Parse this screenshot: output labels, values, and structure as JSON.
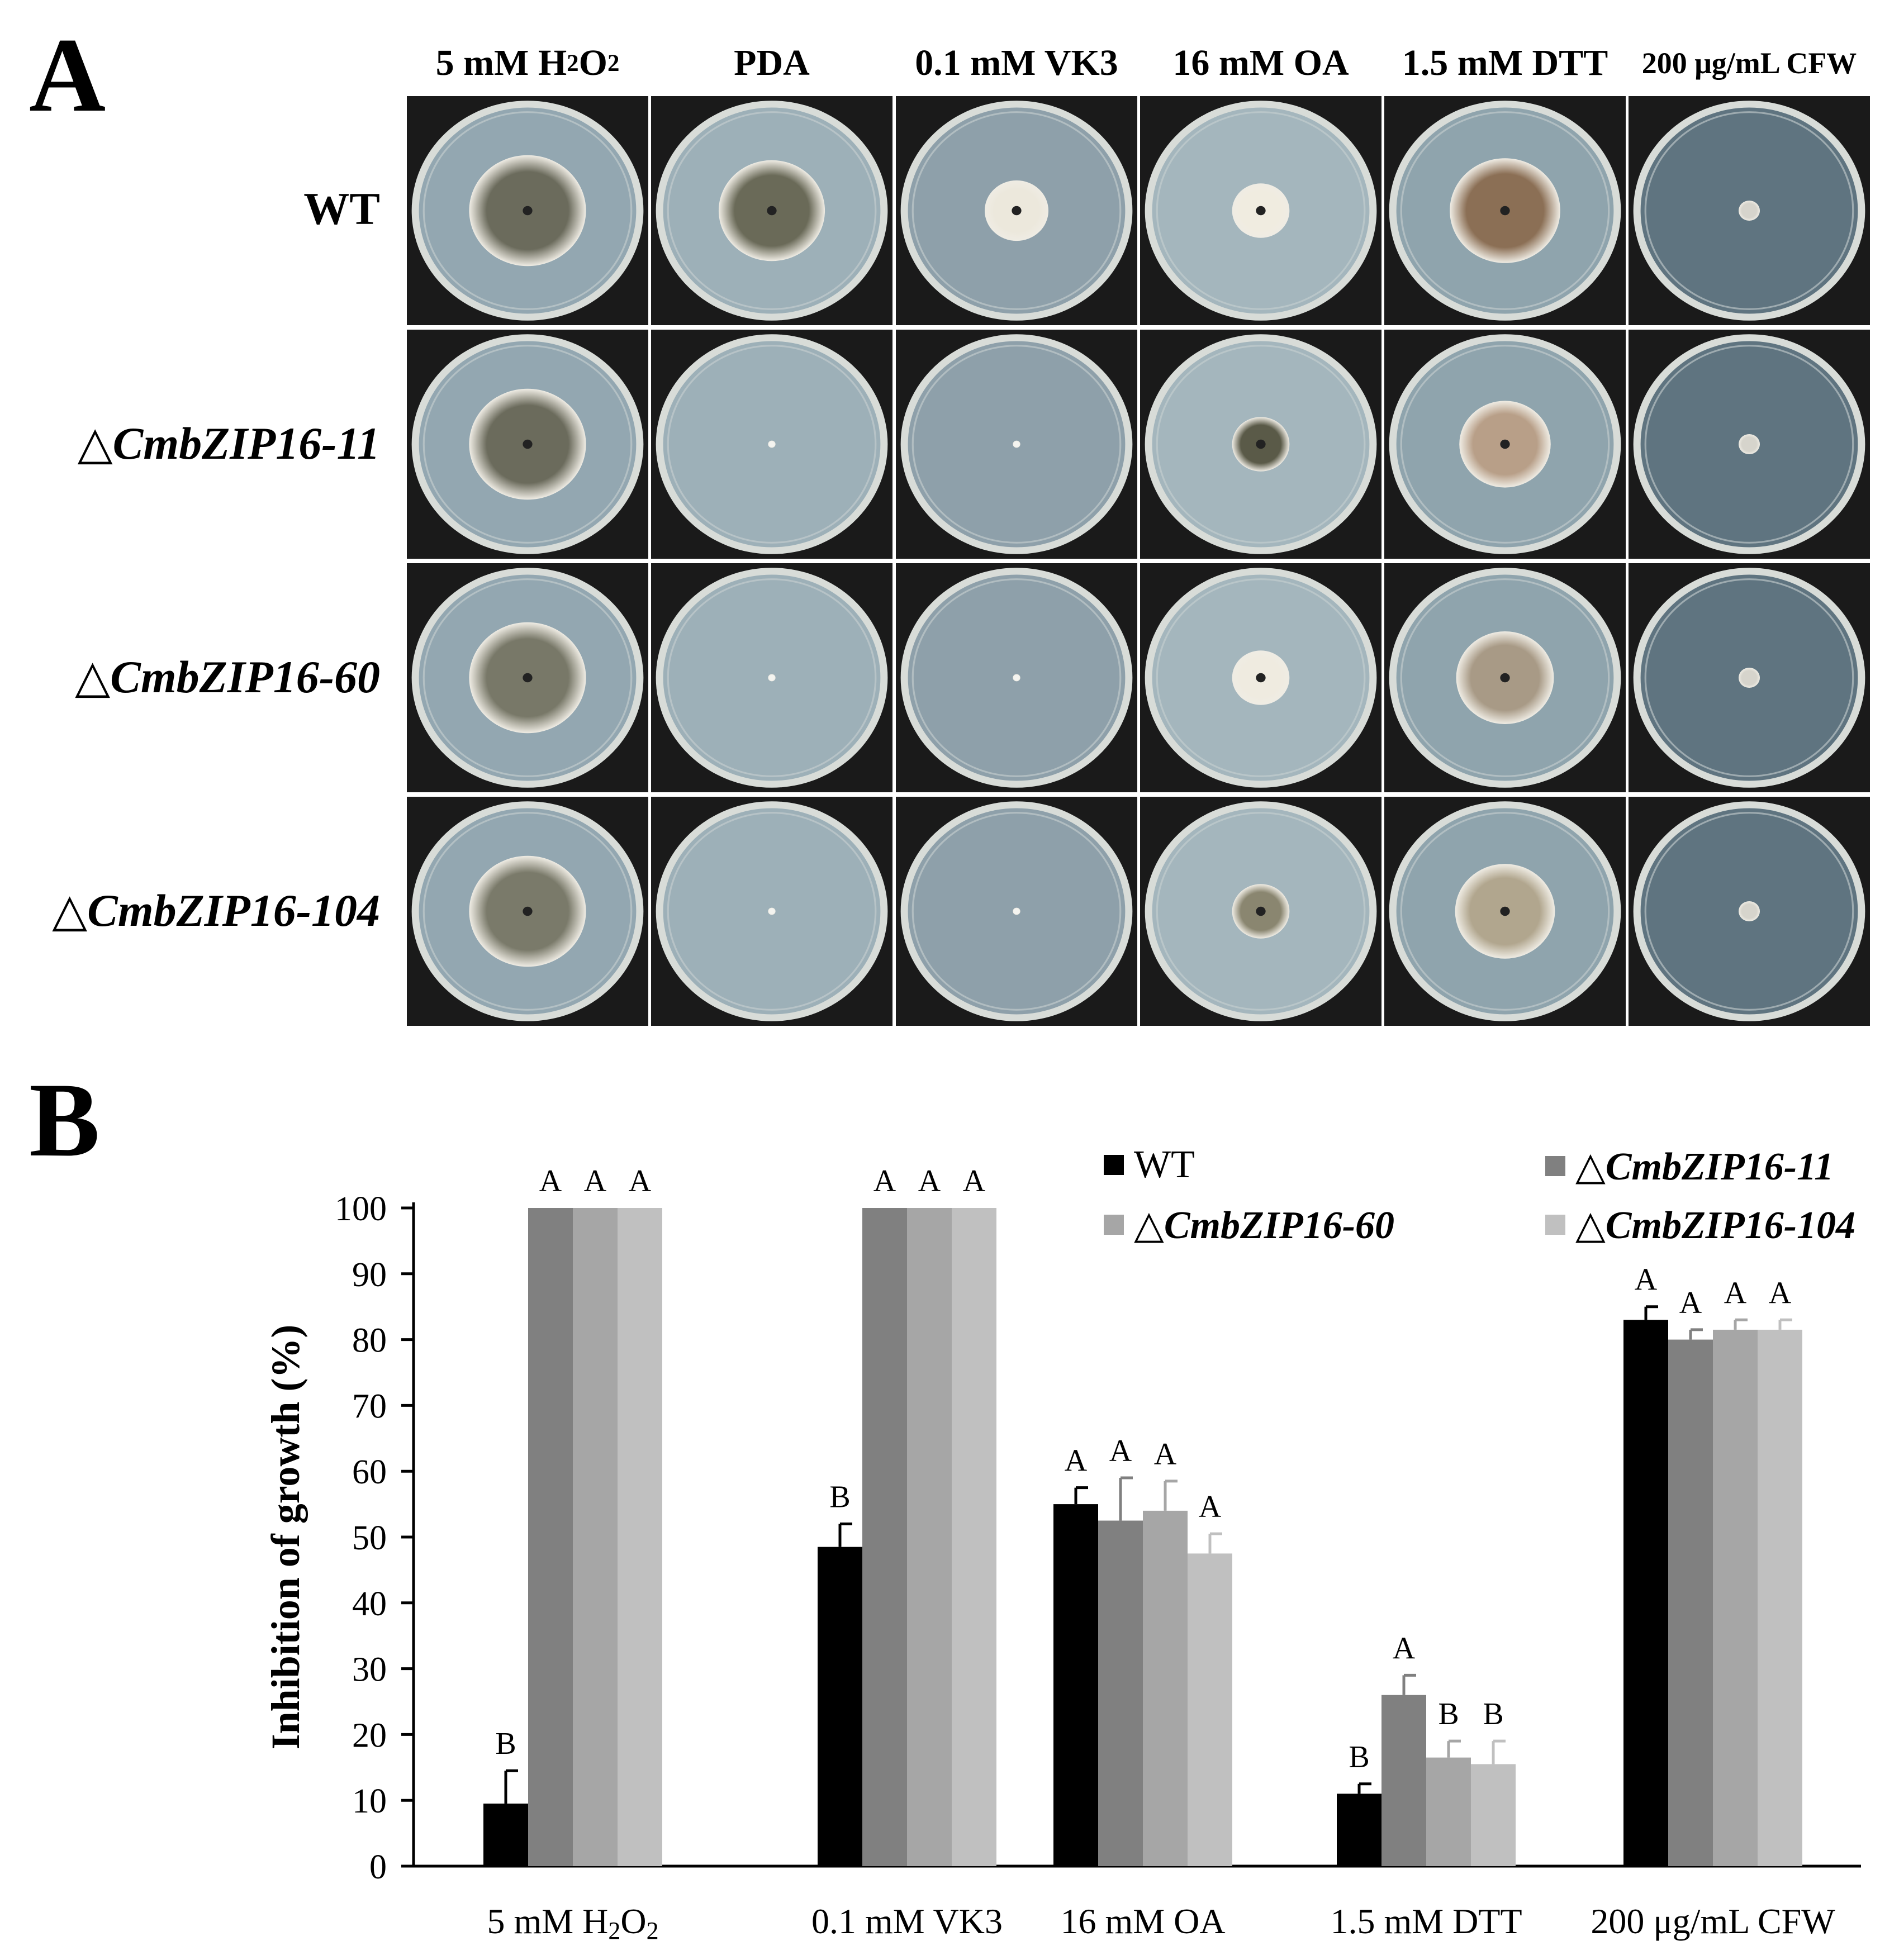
{
  "panels": {
    "a": "A",
    "b": "B"
  },
  "plate_grid": {
    "columns": [
      {
        "pre": "5 mM H",
        "sub1": "2",
        "mid": "O",
        "sub2": "2"
      },
      {
        "text": "PDA"
      },
      {
        "text": "0.1 mM VK3"
      },
      {
        "text": "16 mM OA"
      },
      {
        "text": "1.5 mM DTT"
      },
      {
        "text": "200 μg/mL CFW"
      }
    ],
    "rows": [
      {
        "text": "WT",
        "italic": false
      },
      {
        "text": "△CmbZIP16-11",
        "italic": true
      },
      {
        "text": "△CmbZIP16-60",
        "italic": true
      },
      {
        "text": "△CmbZIP16-104",
        "italic": true
      }
    ],
    "colony_radius": [
      [
        0.55,
        0.5,
        0.3,
        0.27,
        0.52,
        0.1
      ],
      [
        0.55,
        0.035,
        0.035,
        0.27,
        0.43,
        0.1
      ],
      [
        0.55,
        0.035,
        0.035,
        0.27,
        0.46,
        0.1
      ],
      [
        0.55,
        0.035,
        0.035,
        0.27,
        0.47,
        0.1
      ]
    ],
    "colony_color": [
      [
        "#6b6b5c",
        "#6a6a58",
        "#ece8dc",
        "#f0ece0",
        "#8b6f55",
        "#d6d4cc"
      ],
      [
        "#6b6b5c",
        "#f4f4f0",
        "#f4f4f0",
        "#5a5a48",
        "#b89f88",
        "#d6d4cc"
      ],
      [
        "#787868",
        "#f4f4f0",
        "#f4f4f0",
        "#efebe0",
        "#a89a86",
        "#d6d4cc"
      ],
      [
        "#7a7a6a",
        "#f4f4f0",
        "#f4f4f0",
        "#8a8670",
        "#b1a68e",
        "#d6d4cc"
      ]
    ],
    "plate_color": [
      "#93a7b1",
      "#9db0b8",
      "#8ea0aa",
      "#a4b6bd",
      "#8fa4ad",
      "#5f7480"
    ]
  },
  "chart_data": {
    "type": "bar",
    "categories": [
      {
        "pre": "5 mM  H",
        "sub1": "2",
        "mid": "O",
        "sub2": "2"
      },
      {
        "text": "0.1 mM  VK3"
      },
      {
        "text": "16 mM  OA"
      },
      {
        "text": "1.5 mM  DTT"
      },
      {
        "text": "200 μg/mL  CFW"
      }
    ],
    "ylabel": "Inhibition of growth (%)",
    "ylim": [
      0,
      100
    ],
    "yticks": [
      "0",
      "10",
      "20",
      "30",
      "40",
      "50",
      "60",
      "70",
      "80",
      "90",
      "100"
    ],
    "series": [
      {
        "name": "WT",
        "italic": false,
        "color": "#000000",
        "values": [
          9.5,
          48.5,
          55,
          11,
          83
        ],
        "errors": [
          5,
          3.5,
          2.5,
          1.5,
          2
        ],
        "letters": [
          "B",
          "B",
          "A",
          "B",
          "A"
        ]
      },
      {
        "name": "△CmbZIP16-11",
        "italic": true,
        "color": "#808080",
        "values": [
          100,
          100,
          52.5,
          26,
          80
        ],
        "errors": [
          0,
          0,
          6.5,
          3,
          1.5
        ],
        "letters": [
          "A",
          "A",
          "A",
          "A",
          "A"
        ]
      },
      {
        "name": "△CmbZIP16-60",
        "italic": true,
        "color": "#a6a6a6",
        "values": [
          100,
          100,
          54,
          16.5,
          81.5
        ],
        "errors": [
          0,
          0,
          4.5,
          2.5,
          1.5
        ],
        "letters": [
          "A",
          "A",
          "A",
          "B",
          "A"
        ]
      },
      {
        "name": "△CmbZIP16-104",
        "italic": true,
        "color": "#c0c0c0",
        "values": [
          100,
          100,
          47.5,
          15.5,
          81.5
        ],
        "errors": [
          0,
          0,
          3,
          3.5,
          1.5
        ],
        "letters": [
          "A",
          "A",
          "A",
          "B",
          "A"
        ]
      }
    ],
    "legend": "top-right"
  }
}
